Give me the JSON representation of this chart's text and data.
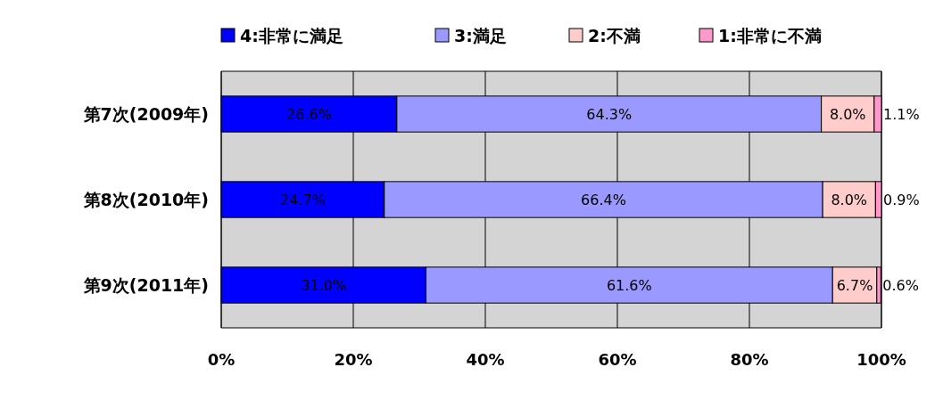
{
  "chart_data": {
    "type": "bar",
    "orientation": "horizontal",
    "stacked": true,
    "categories": [
      "第7次(2009年)",
      "第8次(2010年)",
      "第9次(2011年)"
    ],
    "series": [
      {
        "name": "4:非常に満足",
        "color": "#0000ff",
        "values": [
          26.6,
          24.7,
          31.0
        ],
        "value_labels": [
          "26.6%",
          "24.7%",
          "31.0%"
        ]
      },
      {
        "name": "3:満足",
        "color": "#9999ff",
        "values": [
          64.3,
          66.4,
          61.6
        ],
        "value_labels": [
          "64.3%",
          "66.4%",
          "61.6%"
        ]
      },
      {
        "name": "2:不満",
        "color": "#ffcccc",
        "values": [
          8.0,
          8.0,
          6.7
        ],
        "value_labels": [
          "8.0%",
          "8.0%",
          "6.7%"
        ]
      },
      {
        "name": "1:非常に不満",
        "color": "#ff99cc",
        "values": [
          1.1,
          0.9,
          0.6
        ],
        "value_labels": [
          "1.1%",
          "0.9%",
          "0.6%"
        ]
      }
    ],
    "xlim": [
      0,
      100
    ],
    "xticks": [
      {
        "value": 0,
        "label": "0%"
      },
      {
        "value": 20,
        "label": "20%"
      },
      {
        "value": 40,
        "label": "40%"
      },
      {
        "value": 60,
        "label": "60%"
      },
      {
        "value": 80,
        "label": "80%"
      },
      {
        "value": 100,
        "label": "100%"
      }
    ],
    "grid": "x",
    "legend": "top"
  }
}
